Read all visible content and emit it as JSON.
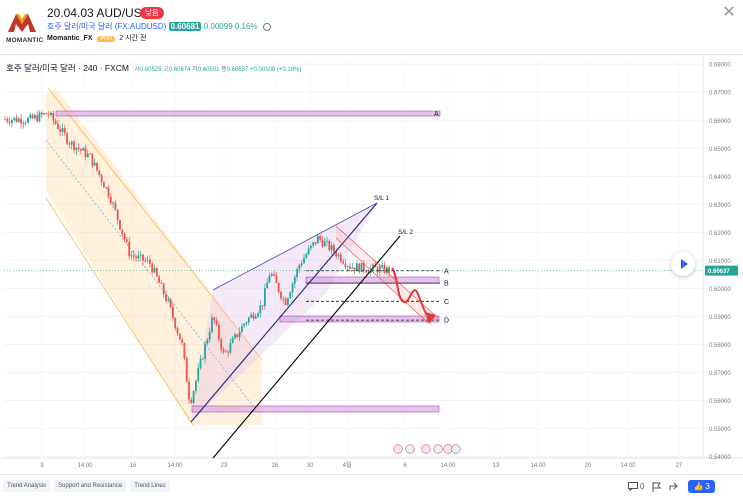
{
  "header": {
    "logo_text": "MOMANTIC",
    "title": "20.04.03 AUD/USD",
    "badge": "낮음",
    "symbol_name": "호주 달러/미국 달러 (FX:AUDUSD)",
    "price": "0.60681",
    "change": "0.00099",
    "change_pct": "0.16%",
    "author": "Momantic_FX",
    "author_badge": "PRO",
    "posted": "2 시간 전",
    "close_icon": "close-icon"
  },
  "legend": {
    "symbol": "호주 달러/미국 달러 · 240 · FXCM",
    "open_label": "시",
    "open": "0.60529",
    "high_label": "고",
    "high": "0.60674",
    "low_label": "저",
    "low": "0.60501",
    "close_label": "종",
    "close": "0.60637",
    "change": "+0.00108 (+0.18%)"
  },
  "chart_data": {
    "type": "candlestick",
    "symbol": "AUDUSD",
    "interval": "240",
    "last_price": 0.60637,
    "price_axis": [
      "0.68000",
      "0.67000",
      "0.66000",
      "0.65000",
      "0.64000",
      "0.63000",
      "0.62000",
      "0.61000",
      "0.60000",
      "0.59000",
      "0.58000",
      "0.57000",
      "0.56000",
      "0.55000",
      "0.54000"
    ],
    "time_axis": [
      "9",
      "14:00",
      "16",
      "14:00",
      "23",
      "26",
      "30",
      "4월",
      "6",
      "14:00",
      "13",
      "14:00",
      "20",
      "14:00",
      "27"
    ],
    "ylim": [
      0.5395,
      0.6815
    ],
    "levels": [
      {
        "label": "A",
        "price": 0.6063
      },
      {
        "label": "B",
        "price": 0.6019
      },
      {
        "label": "C",
        "price": 0.5954
      },
      {
        "label": "D",
        "price": 0.5887
      }
    ],
    "trendline_labels": [
      "S/L 1",
      "S/L 2"
    ]
  },
  "footer": {
    "tags": [
      "Trend Analysis",
      "Support and Resistance",
      "Trend Lines"
    ],
    "comments": "0",
    "boosts": "3"
  },
  "colors": {
    "up": "#26a69a",
    "down": "#ef5350",
    "zone": "#ce93d8",
    "channel": "#ffcc80",
    "accent": "#2962ff"
  }
}
